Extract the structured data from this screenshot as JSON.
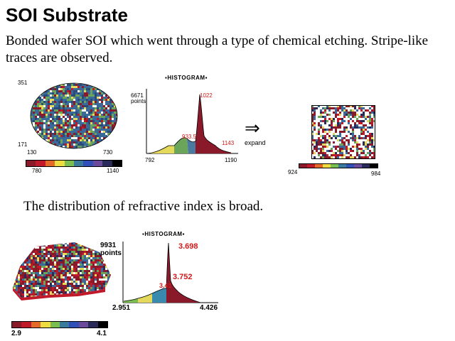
{
  "slide": {
    "title": "SOI Substrate",
    "description": "Bonded wafer SOI which went through a type of chemical etching.  Stripe-like traces are observed.",
    "note": "The distribution of refractive index is broad."
  },
  "map1": {
    "y_top": "351",
    "y_bottom": "171",
    "x_left": "130",
    "x_right": "730",
    "scale_min": "780",
    "scale_max": "1140"
  },
  "hist1": {
    "heading": "HISTOGRAM",
    "points": "6671",
    "points_unit": "points",
    "peak_label": "1022",
    "mid_label": "933.5",
    "tail_label": "1143",
    "x_min": "792",
    "x_max": "1190"
  },
  "expand": {
    "arrow": "⇒",
    "label": "expand"
  },
  "map_zoom": {
    "scale_min": "924",
    "scale_max": "984"
  },
  "map2": {
    "scale_min": "2.9",
    "scale_max": "4.1"
  },
  "hist2": {
    "heading": "HISTOGRAM",
    "points": "9931",
    "points_unit": "points",
    "peak_label": "3.698",
    "mid_label": "3.752",
    "low_label": "3.41",
    "x_min": "2.951",
    "x_max": "4.426"
  },
  "colors": {
    "scale": [
      "#8a1a2a",
      "#c01a2a",
      "#e46a2a",
      "#eedd40",
      "#7abd50",
      "#3a7a9a",
      "#3050b8",
      "#6a4a9a",
      "#2a2a5a",
      "#000000"
    ]
  }
}
